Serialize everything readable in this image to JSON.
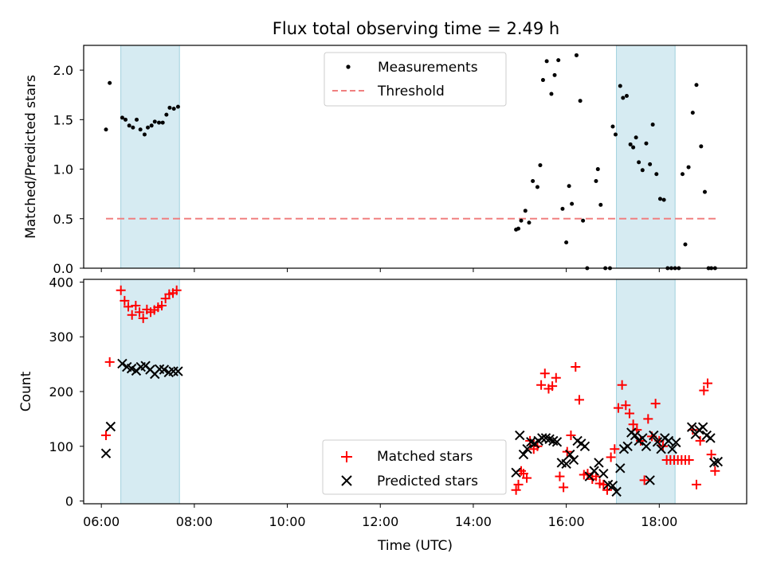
{
  "figure": {
    "title": "Flux total observing time = 2.49 h",
    "xlabel": "Time (UTC)"
  },
  "chart_data": [
    {
      "type": "scatter",
      "ylabel": "Matched/Predicted stars",
      "xlim": [
        5.62,
        19.88
      ],
      "ylim": [
        0,
        2.25
      ],
      "yticks": [
        0.0,
        0.5,
        1.0,
        1.5,
        2.0
      ],
      "ytick_labels": [
        "0.0",
        "0.5",
        "1.0",
        "1.5",
        "2.0"
      ],
      "shaded_intervals": [
        [
          6.42,
          7.68
        ],
        [
          17.08,
          18.34
        ]
      ],
      "legend": {
        "position": "upper-center"
      },
      "series": [
        {
          "name": "Measurements",
          "kind": "points",
          "color": "#000000",
          "x": [
            6.1,
            6.18,
            6.45,
            6.52,
            6.6,
            6.68,
            6.76,
            6.84,
            6.93,
            7.0,
            7.08,
            7.15,
            7.24,
            7.32,
            7.4,
            7.47,
            7.56,
            7.65,
            14.92,
            14.97,
            15.03,
            15.12,
            15.2,
            15.28,
            15.38,
            15.44,
            15.5,
            15.58,
            15.68,
            15.75,
            15.83,
            15.92,
            16.0,
            16.06,
            16.12,
            16.22,
            16.3,
            16.36,
            16.45,
            16.64,
            16.68,
            16.74,
            16.84,
            16.94,
            17.0,
            17.06,
            17.16,
            17.22,
            17.3,
            17.38,
            17.44,
            17.5,
            17.56,
            17.64,
            17.72,
            17.8,
            17.86,
            17.94,
            18.02,
            18.1,
            18.18,
            18.26,
            18.34,
            18.42,
            18.5,
            18.56,
            18.63,
            18.72,
            18.8,
            18.9,
            18.98,
            19.06,
            19.12,
            19.2
          ],
          "y": [
            1.4,
            1.87,
            1.52,
            1.5,
            1.44,
            1.42,
            1.5,
            1.4,
            1.35,
            1.42,
            1.44,
            1.48,
            1.47,
            1.47,
            1.55,
            1.62,
            1.61,
            1.63,
            0.39,
            0.4,
            0.48,
            0.58,
            0.46,
            0.88,
            0.82,
            1.04,
            1.9,
            2.09,
            1.76,
            1.95,
            2.1,
            0.6,
            0.26,
            0.83,
            0.65,
            2.15,
            1.69,
            0.48,
            0.0,
            0.88,
            1.0,
            0.64,
            0.0,
            0.0,
            1.43,
            1.35,
            1.84,
            1.72,
            1.74,
            1.25,
            1.22,
            1.32,
            1.07,
            0.99,
            1.26,
            1.05,
            1.45,
            0.95,
            0.7,
            0.69,
            0.0,
            0.0,
            0.0,
            0.0,
            0.95,
            0.24,
            1.02,
            1.57,
            1.85,
            1.23,
            0.77,
            0.0,
            0.0,
            0.0
          ]
        },
        {
          "name": "Threshold",
          "kind": "dashed-line",
          "color": "#f08080",
          "x": [
            6.1,
            19.25
          ],
          "y": [
            0.5,
            0.5
          ]
        }
      ]
    },
    {
      "type": "scatter",
      "ylabel": "Count",
      "xlim": [
        5.62,
        19.88
      ],
      "ylim": [
        -5,
        405
      ],
      "yticks": [
        0,
        100,
        200,
        300,
        400
      ],
      "ytick_labels": [
        "0",
        "100",
        "200",
        "300",
        "400"
      ],
      "xticks": [
        6,
        8,
        10,
        12,
        14,
        16,
        18
      ],
      "xtick_labels": [
        "06:00",
        "08:00",
        "10:00",
        "12:00",
        "14:00",
        "16:00",
        "18:00"
      ],
      "shaded_intervals": [
        [
          6.42,
          7.68
        ],
        [
          17.08,
          18.34
        ]
      ],
      "legend": {
        "position": "lower-center"
      },
      "series": [
        {
          "name": "Matched stars",
          "marker": "plus",
          "color": "#ff0000",
          "x": [
            6.1,
            6.18,
            6.42,
            6.5,
            6.58,
            6.66,
            6.74,
            6.82,
            6.9,
            6.98,
            7.06,
            7.14,
            7.22,
            7.3,
            7.38,
            7.46,
            7.54,
            7.62,
            14.92,
            14.97,
            15.03,
            15.08,
            15.15,
            15.22,
            15.3,
            15.38,
            15.46,
            15.54,
            15.62,
            15.7,
            15.78,
            15.86,
            15.94,
            16.02,
            16.1,
            16.2,
            16.28,
            16.38,
            16.46,
            16.56,
            16.64,
            16.72,
            16.8,
            16.88,
            16.96,
            17.04,
            17.12,
            17.2,
            17.28,
            17.36,
            17.44,
            17.52,
            17.6,
            17.68,
            17.76,
            17.84,
            17.92,
            18.0,
            18.08,
            18.16,
            18.24,
            18.32,
            18.4,
            18.48,
            18.56,
            18.64,
            18.72,
            18.8,
            18.88,
            18.96,
            19.04,
            19.12,
            19.2
          ],
          "y": [
            120,
            254,
            385,
            366,
            355,
            340,
            357,
            345,
            334,
            350,
            345,
            349,
            354,
            357,
            370,
            378,
            380,
            385,
            20,
            30,
            55,
            50,
            42,
            110,
            95,
            100,
            212,
            233,
            205,
            210,
            225,
            45,
            25,
            90,
            120,
            245,
            185,
            48,
            50,
            40,
            45,
            32,
            30,
            20,
            80,
            95,
            170,
            212,
            175,
            160,
            140,
            130,
            110,
            38,
            150,
            118,
            178,
            110,
            100,
            75,
            75,
            75,
            75,
            75,
            75,
            75,
            130,
            30,
            110,
            202,
            215,
            85,
            55
          ]
        },
        {
          "name": "Predicted stars",
          "marker": "x",
          "color": "#000000",
          "x": [
            6.1,
            6.2,
            6.45,
            6.55,
            6.65,
            6.75,
            6.85,
            6.95,
            7.05,
            7.15,
            7.25,
            7.35,
            7.45,
            7.55,
            7.65,
            14.92,
            15.0,
            15.08,
            15.16,
            15.24,
            15.32,
            15.4,
            15.48,
            15.56,
            15.64,
            15.72,
            15.8,
            15.9,
            16.0,
            16.08,
            16.16,
            16.24,
            16.32,
            16.4,
            16.5,
            16.6,
            16.7,
            16.8,
            16.9,
            17.0,
            17.08,
            17.16,
            17.24,
            17.32,
            17.4,
            17.48,
            17.56,
            17.64,
            17.72,
            17.8,
            17.88,
            17.96,
            18.04,
            18.12,
            18.2,
            18.28,
            18.36,
            18.7,
            18.78,
            18.86,
            18.94,
            19.02,
            19.1,
            19.18,
            19.26
          ],
          "y": [
            87,
            136,
            251,
            245,
            242,
            238,
            245,
            247,
            240,
            232,
            241,
            240,
            235,
            237,
            237,
            52,
            120,
            85,
            95,
            108,
            105,
            110,
            115,
            115,
            113,
            110,
            108,
            70,
            68,
            85,
            75,
            110,
            105,
            100,
            45,
            55,
            70,
            50,
            30,
            28,
            17,
            60,
            95,
            100,
            125,
            120,
            110,
            115,
            100,
            38,
            120,
            108,
            95,
            115,
            110,
            95,
            107,
            135,
            122,
            130,
            135,
            120,
            115,
            70,
            72
          ]
        }
      ]
    }
  ]
}
